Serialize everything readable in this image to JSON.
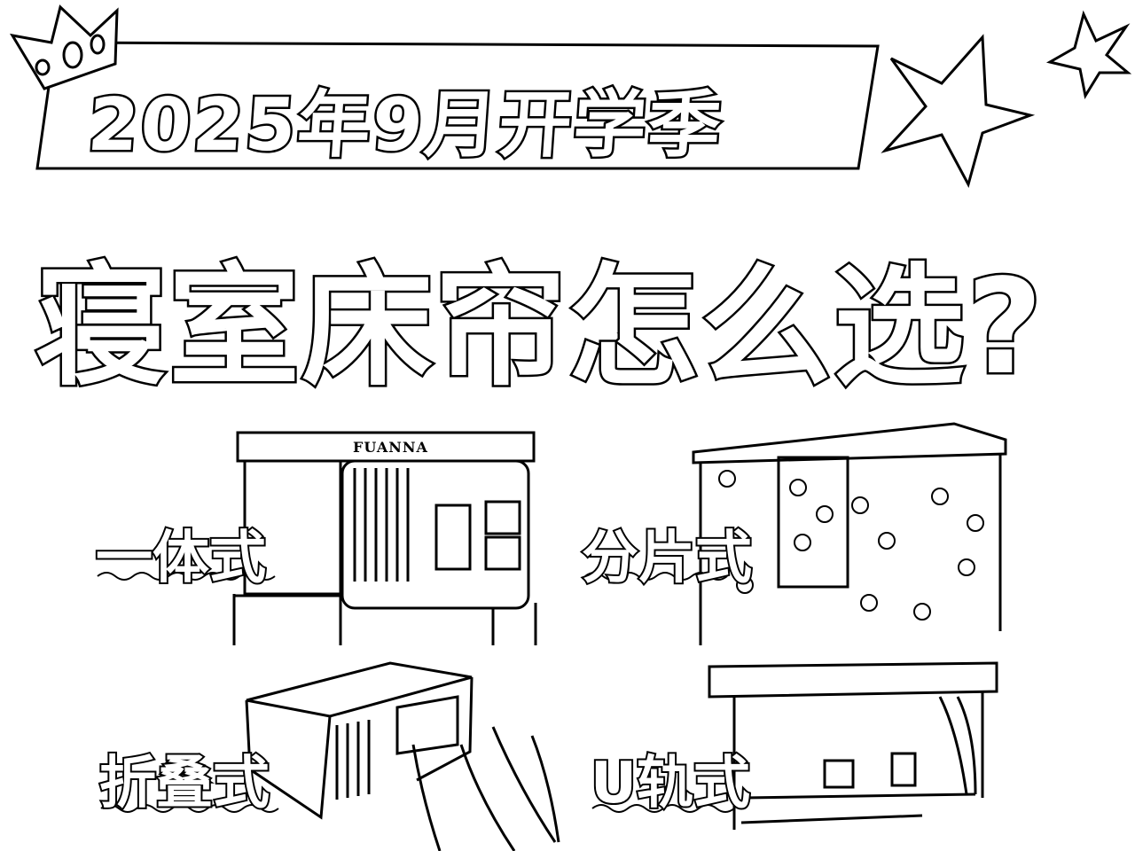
{
  "banner": {
    "title": "2025年9月开学季"
  },
  "main_title": "寝室床帘怎么选?",
  "options": [
    {
      "label": "一体式",
      "brand": "FUANNA"
    },
    {
      "label": "分片式"
    },
    {
      "label": "折叠式"
    },
    {
      "label": "U轨式"
    }
  ],
  "decorations": [
    "crown-icon",
    "star-icon",
    "star-icon"
  ],
  "colors": {
    "ink": "#000000",
    "paper": "#ffffff"
  }
}
